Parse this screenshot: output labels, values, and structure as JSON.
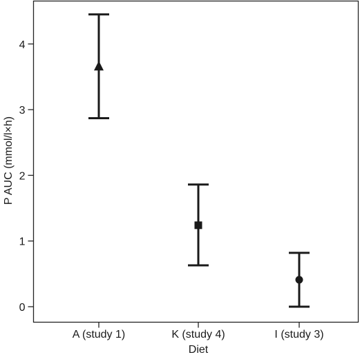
{
  "chart_data": {
    "type": "scatter",
    "xlabel": "Diet",
    "ylabel": "P AUC (mmol/l×h)",
    "categories": [
      "A (study 1)",
      "K (study 4)",
      "I (study 3)"
    ],
    "ylim": [
      -0.2,
      4.6
    ],
    "yticks": [
      0,
      1,
      2,
      3,
      4
    ],
    "grid": false,
    "points": [
      {
        "category": "A (study 1)",
        "value": 3.66,
        "lower": 2.87,
        "upper": 4.45,
        "marker": "triangle"
      },
      {
        "category": "K (study 4)",
        "value": 1.24,
        "lower": 0.63,
        "upper": 1.86,
        "marker": "square"
      },
      {
        "category": "I (study 3)",
        "value": 0.41,
        "lower": 0.0,
        "upper": 0.82,
        "marker": "circle"
      }
    ],
    "colors": {
      "marks": "#1a1a1a",
      "frame": "#222222"
    }
  }
}
